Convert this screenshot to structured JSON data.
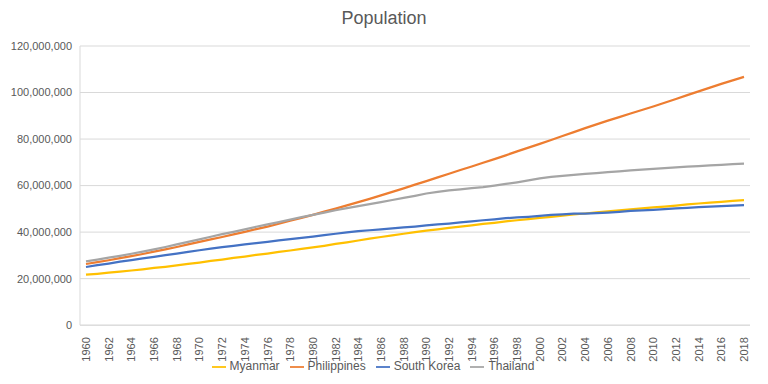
{
  "chart_data": {
    "type": "line",
    "title": "Population",
    "categories": [
      "1960",
      null,
      "1962",
      null,
      "1964",
      null,
      "1966",
      null,
      "1968",
      null,
      "1970",
      null,
      "1972",
      null,
      "1974",
      null,
      "1976",
      null,
      "1978",
      null,
      "1980",
      null,
      "1982",
      null,
      "1984",
      null,
      "1986",
      null,
      "1988",
      null,
      "1990",
      null,
      "1992",
      null,
      "1994",
      null,
      "1996",
      null,
      "1998",
      null,
      "2000",
      null,
      "2002",
      null,
      "2004",
      null,
      "2006",
      null,
      "2008",
      null,
      "2010",
      null,
      "2012",
      null,
      "2014",
      null,
      "2016",
      null,
      "2018"
    ],
    "series": [
      {
        "name": "Philippines",
        "color": "#ED7D31",
        "values": [
          26300000,
          27100000,
          27900000,
          28800000,
          29700000,
          30600000,
          31600000,
          32600000,
          33600000,
          34700000,
          35800000,
          36900000,
          37900000,
          39000000,
          40100000,
          41300000,
          42400000,
          43600000,
          44900000,
          46100000,
          47400000,
          48800000,
          50100000,
          51500000,
          52900000,
          54300000,
          55800000,
          57300000,
          58800000,
          60400000,
          61900000,
          63500000,
          65100000,
          66700000,
          68200000,
          69800000,
          71400000,
          73000000,
          74700000,
          76300000,
          77900000,
          79600000,
          81300000,
          83000000,
          84700000,
          86300000,
          87900000,
          89400000,
          91000000,
          92500000,
          94000000,
          95600000,
          97200000,
          98900000,
          100500000,
          102100000,
          103700000,
          105200000,
          106700000
        ]
      },
      {
        "name": "Thailand",
        "color": "#A5A5A5",
        "values": [
          27400000,
          28200000,
          29000000,
          29800000,
          30700000,
          31600000,
          32600000,
          33600000,
          34700000,
          35800000,
          36900000,
          38000000,
          39100000,
          40100000,
          41200000,
          42300000,
          43300000,
          44300000,
          45400000,
          46400000,
          47400000,
          48400000,
          49400000,
          50300000,
          51200000,
          52000000,
          52900000,
          53800000,
          54700000,
          55600000,
          56600000,
          57300000,
          57900000,
          58400000,
          58900000,
          59300000,
          60000000,
          60700000,
          61400000,
          62200000,
          63100000,
          63700000,
          64200000,
          64600000,
          65000000,
          65400000,
          65800000,
          66100000,
          66500000,
          66900000,
          67200000,
          67500000,
          67800000,
          68100000,
          68400000,
          68700000,
          68900000,
          69200000,
          69400000
        ]
      },
      {
        "name": "Myanmar",
        "color": "#FFC000",
        "values": [
          21700000,
          22100000,
          22600000,
          23000000,
          23500000,
          24000000,
          24600000,
          25100000,
          25700000,
          26300000,
          26900000,
          27600000,
          28200000,
          28900000,
          29500000,
          30200000,
          30800000,
          31500000,
          32100000,
          32800000,
          33400000,
          34100000,
          34900000,
          35600000,
          36400000,
          37200000,
          37900000,
          38600000,
          39300000,
          40000000,
          40600000,
          41200000,
          41800000,
          42400000,
          42900000,
          43500000,
          44000000,
          44600000,
          45100000,
          45600000,
          46100000,
          46600000,
          47100000,
          47600000,
          48000000,
          48500000,
          48900000,
          49300000,
          49800000,
          50200000,
          50600000,
          51000000,
          51400000,
          51900000,
          52300000,
          52700000,
          53000000,
          53400000,
          53700000
        ]
      },
      {
        "name": "South Korea",
        "color": "#4472C4",
        "values": [
          25000000,
          25800000,
          26500000,
          27300000,
          28000000,
          28700000,
          29400000,
          30100000,
          30800000,
          31500000,
          32200000,
          32900000,
          33500000,
          34100000,
          34700000,
          35300000,
          35800000,
          36400000,
          37000000,
          37500000,
          38100000,
          38700000,
          39300000,
          39900000,
          40400000,
          40800000,
          41200000,
          41600000,
          42000000,
          42400000,
          42900000,
          43300000,
          43700000,
          44200000,
          44600000,
          45100000,
          45500000,
          46000000,
          46300000,
          46600000,
          47000000,
          47400000,
          47600000,
          47900000,
          48000000,
          48200000,
          48400000,
          48700000,
          49100000,
          49300000,
          49600000,
          49900000,
          50200000,
          50400000,
          50700000,
          51000000,
          51200000,
          51400000,
          51600000
        ]
      }
    ],
    "ylim": [
      0,
      120000000
    ],
    "yticks": [
      0,
      {
        "value": 20000000,
        "label": "20,000,000"
      },
      {
        "value": 40000000,
        "label": "40,000,000"
      },
      {
        "value": 60000000,
        "label": "60,000,000"
      },
      {
        "value": 80000000,
        "label": "80,000,000"
      },
      {
        "value": 100000000,
        "label": "100,000,000"
      },
      {
        "value": 120000000,
        "label": "120,000,000"
      }
    ],
    "grid": true,
    "legend": "bottom"
  }
}
